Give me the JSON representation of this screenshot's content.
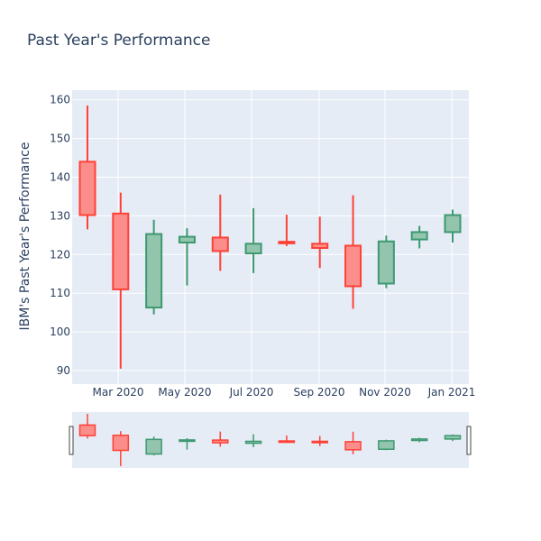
{
  "chart_data": {
    "type": "candlestick",
    "title": "Past Year's Performance",
    "xlabel": "",
    "ylabel": "IBM's Past Year's Performance",
    "ylim": [
      86.5,
      162.5
    ],
    "x_ticks": [
      "Mar 2020",
      "May 2020",
      "Jul 2020",
      "Sep 2020",
      "Nov 2020",
      "Jan 2021"
    ],
    "y_ticks": [
      90,
      100,
      110,
      120,
      130,
      140,
      150,
      160
    ],
    "grid": true,
    "legend": "none",
    "rangeslider": true,
    "colors": {
      "increasing_line": "#3D9970",
      "increasing_fill": "#93C4AE",
      "decreasing_line": "#FF4136",
      "decreasing_fill": "#FB8E8A",
      "plot_bg": "#E5ECF6",
      "grid": "#ffffff",
      "text": "#2a3f5f"
    },
    "candles": [
      {
        "month": "Jan 2020",
        "open": 144.0,
        "high": 158.5,
        "low": 126.5,
        "close": 130.2
      },
      {
        "month": "Feb 2020",
        "open": 130.6,
        "high": 136.0,
        "low": 90.5,
        "close": 111.0
      },
      {
        "month": "Mar 2020",
        "open": 106.3,
        "high": 129.0,
        "low": 104.5,
        "close": 125.3
      },
      {
        "month": "Apr 2020",
        "open": 123.1,
        "high": 126.8,
        "low": 112.0,
        "close": 124.6
      },
      {
        "month": "May 2020",
        "open": 124.4,
        "high": 135.5,
        "low": 115.8,
        "close": 120.9
      },
      {
        "month": "Jun 2020",
        "open": 120.3,
        "high": 132.0,
        "low": 115.2,
        "close": 122.8
      },
      {
        "month": "Jul 2020",
        "open": 123.3,
        "high": 130.3,
        "low": 122.2,
        "close": 122.9
      },
      {
        "month": "Aug 2020",
        "open": 122.8,
        "high": 129.8,
        "low": 116.5,
        "close": 121.7
      },
      {
        "month": "Sep 2020",
        "open": 122.3,
        "high": 135.3,
        "low": 106.0,
        "close": 111.8
      },
      {
        "month": "Oct 2020",
        "open": 112.5,
        "high": 124.9,
        "low": 111.3,
        "close": 123.4
      },
      {
        "month": "Nov 2020",
        "open": 123.9,
        "high": 127.4,
        "low": 121.6,
        "close": 125.8
      },
      {
        "month": "Dec 2020",
        "open": 125.8,
        "high": 131.6,
        "low": 123.1,
        "close": 130.2
      }
    ]
  }
}
